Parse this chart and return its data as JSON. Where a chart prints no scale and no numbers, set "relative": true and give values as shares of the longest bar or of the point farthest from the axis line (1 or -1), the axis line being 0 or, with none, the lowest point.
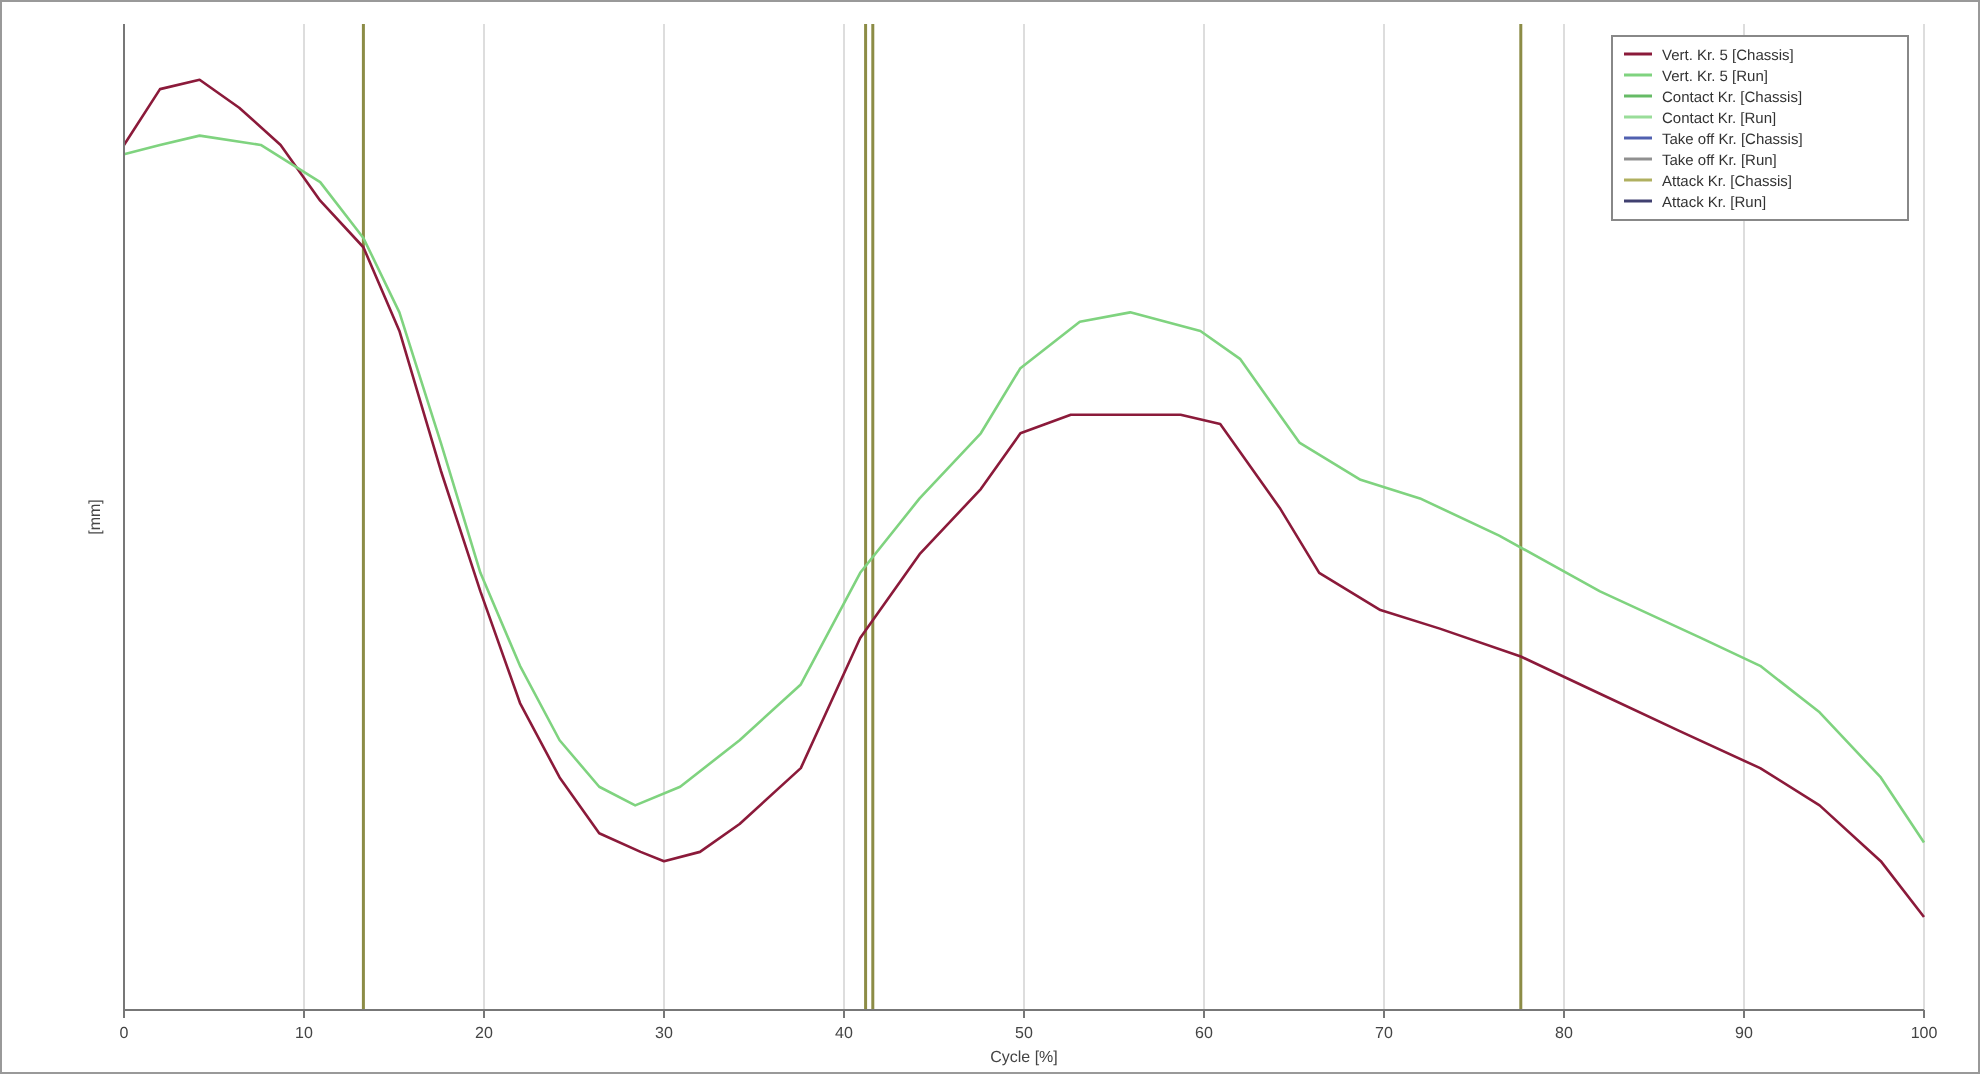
{
  "chart_data": {
    "type": "line",
    "xlabel": "Cycle [%]",
    "ylabel": "[mm]",
    "relative": true,
    "xlim": [
      0,
      100
    ],
    "xticks": [
      0,
      10,
      20,
      30,
      40,
      50,
      60,
      70,
      80,
      90,
      100
    ],
    "grid": "x",
    "legend": "top right",
    "series": [
      {
        "name": "Vert. Kr. 5 [Chassis]",
        "color": "#8b1a3a",
        "x": [
          0,
          2,
          4.2,
          6.4,
          8.7,
          10.9,
          13.3,
          15.3,
          17.6,
          19.8,
          22,
          24.2,
          26.4,
          28.7,
          30,
          32,
          34.2,
          37.6,
          40.9,
          44.2,
          47.6,
          49.8,
          52.6,
          55.3,
          58.7,
          60.9,
          64.2,
          66.4,
          69.8,
          73.1,
          77.6,
          82,
          86.4,
          90.9,
          94.2,
          97.6,
          100
        ],
        "values": [
          0.93,
          0.99,
          1.0,
          0.97,
          0.93,
          0.87,
          0.82,
          0.73,
          0.58,
          0.45,
          0.33,
          0.25,
          0.19,
          0.17,
          0.16,
          0.17,
          0.2,
          0.26,
          0.4,
          0.49,
          0.56,
          0.62,
          0.64,
          0.64,
          0.64,
          0.63,
          0.54,
          0.47,
          0.43,
          0.41,
          0.38,
          0.34,
          0.3,
          0.26,
          0.22,
          0.16,
          0.1
        ]
      },
      {
        "name": "Vert. Kr. 5 [Run]",
        "color": "#7fd37f",
        "x": [
          0,
          2,
          4.2,
          7.6,
          10.9,
          13.3,
          15.3,
          17.6,
          19.8,
          22,
          24.2,
          26.4,
          28.4,
          30.9,
          34.2,
          37.6,
          40.9,
          44.2,
          47.6,
          49.8,
          53.1,
          55.9,
          59.8,
          62,
          65.3,
          68.7,
          72,
          76.4,
          82,
          87.6,
          90.9,
          94.2,
          97.6,
          100
        ],
        "values": [
          0.92,
          0.93,
          0.94,
          0.93,
          0.89,
          0.83,
          0.75,
          0.61,
          0.47,
          0.37,
          0.29,
          0.24,
          0.22,
          0.24,
          0.29,
          0.35,
          0.47,
          0.55,
          0.62,
          0.69,
          0.74,
          0.75,
          0.73,
          0.7,
          0.61,
          0.57,
          0.55,
          0.51,
          0.45,
          0.4,
          0.37,
          0.32,
          0.25,
          0.18
        ]
      },
      {
        "name": "Contact Kr. [Chassis]",
        "color": "#66bb66"
      },
      {
        "name": "Contact Kr. [Run]",
        "color": "#99dd99"
      },
      {
        "name": "Take off Kr. [Chassis]",
        "color": "#5060b0"
      },
      {
        "name": "Take off Kr. [Run]",
        "color": "#909090"
      },
      {
        "name": "Attack Kr. [Chassis]",
        "color": "#b0b060"
      },
      {
        "name": "Attack Kr. [Run]",
        "color": "#404070"
      }
    ],
    "ref_lines": [
      {
        "axis": "x",
        "value": 13.3,
        "color": "#8c8c46"
      },
      {
        "axis": "x",
        "value": 41.2,
        "color": "#8c8c46"
      },
      {
        "axis": "x",
        "value": 41.6,
        "color": "#8c8c46"
      },
      {
        "axis": "x",
        "value": 77.6,
        "color": "#8c8c46"
      }
    ]
  }
}
